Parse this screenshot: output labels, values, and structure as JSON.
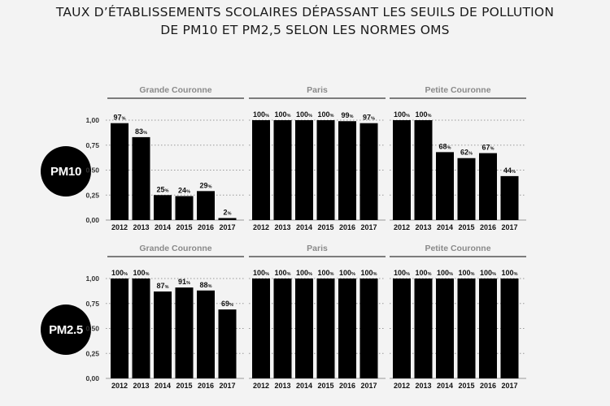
{
  "title_line1": "TAUX D’ÉTABLISSEMENTS SCOLAIRES DÉPASSANT LES SEUILS DE POLLUTION",
  "title_line2": "DE PM10 ET PM2,5 SELON LES NORMES OMS",
  "rows": [
    {
      "label": "PM10"
    },
    {
      "label": "PM2.5"
    }
  ],
  "chart_data": [
    {
      "type": "bar",
      "row": "PM10",
      "title": "Grande Couronne",
      "categories": [
        "2012",
        "2013",
        "2014",
        "2015",
        "2016",
        "2017"
      ],
      "values": [
        0.97,
        0.83,
        0.25,
        0.24,
        0.29,
        0.02
      ],
      "labels": [
        "97",
        "83",
        "25",
        "24",
        "29",
        "2"
      ],
      "ylim": [
        0,
        1
      ],
      "yticks": [
        "0,00",
        "0,25",
        "0,50",
        "0,75",
        "1,00"
      ],
      "grid": true
    },
    {
      "type": "bar",
      "row": "PM10",
      "title": "Paris",
      "categories": [
        "2012",
        "2013",
        "2014",
        "2015",
        "2016",
        "2017"
      ],
      "values": [
        1.0,
        1.0,
        1.0,
        1.0,
        0.99,
        0.97
      ],
      "labels": [
        "100",
        "100",
        "100",
        "100",
        "99",
        "97"
      ],
      "ylim": [
        0,
        1
      ],
      "grid": true
    },
    {
      "type": "bar",
      "row": "PM10",
      "title": "Petite Couronne",
      "categories": [
        "2012",
        "2013",
        "2014",
        "2015",
        "2016",
        "2017"
      ],
      "values": [
        1.0,
        1.0,
        0.68,
        0.62,
        0.67,
        0.44
      ],
      "labels": [
        "100",
        "100",
        "68",
        "62",
        "67",
        "44"
      ],
      "ylim": [
        0,
        1
      ],
      "grid": true
    },
    {
      "type": "bar",
      "row": "PM2.5",
      "title": "Grande Couronne",
      "categories": [
        "2012",
        "2013",
        "2014",
        "2015",
        "2016",
        "2017"
      ],
      "values": [
        1.0,
        1.0,
        0.87,
        0.91,
        0.88,
        0.69
      ],
      "labels": [
        "100",
        "100",
        "87",
        "91",
        "88",
        "69"
      ],
      "ylim": [
        0,
        1
      ],
      "yticks": [
        "0,00",
        "0,25",
        "0,50",
        "0,75",
        "1,00"
      ],
      "grid": true
    },
    {
      "type": "bar",
      "row": "PM2.5",
      "title": "Paris",
      "categories": [
        "2012",
        "2013",
        "2014",
        "2015",
        "2016",
        "2017"
      ],
      "values": [
        1.0,
        1.0,
        1.0,
        1.0,
        1.0,
        1.0
      ],
      "labels": [
        "100",
        "100",
        "100",
        "100",
        "100",
        "100"
      ],
      "ylim": [
        0,
        1
      ],
      "grid": true
    },
    {
      "type": "bar",
      "row": "PM2.5",
      "title": "Petite Couronne",
      "categories": [
        "2012",
        "2013",
        "2014",
        "2015",
        "2016",
        "2017"
      ],
      "values": [
        1.0,
        1.0,
        1.0,
        1.0,
        1.0,
        1.0
      ],
      "labels": [
        "100",
        "100",
        "100",
        "100",
        "100",
        "100"
      ],
      "ylim": [
        0,
        1
      ],
      "grid": true
    }
  ],
  "percent_suffix": "%"
}
